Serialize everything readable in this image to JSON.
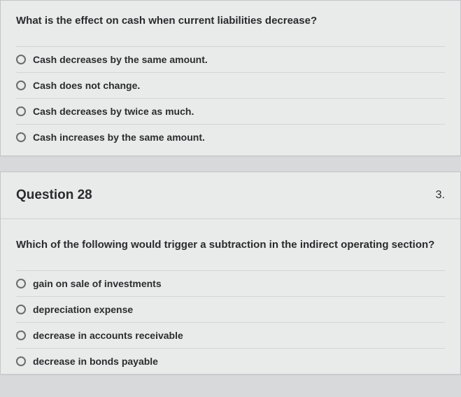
{
  "q27": {
    "prompt": "What is the effect on cash when current liabilities decrease?",
    "options": [
      "Cash decreases by the same amount.",
      "Cash does not change.",
      "Cash decreases by twice as much.",
      "Cash increases by the same amount."
    ]
  },
  "q28": {
    "title": "Question 28",
    "points": "3.",
    "prompt": "Which of the following would trigger a subtraction in the indirect operating section?",
    "options": [
      "gain on sale of investments",
      "depreciation expense",
      "decrease in accounts receivable",
      "decrease in bonds payable"
    ]
  },
  "colors": {
    "page_bg": "#d8d9da",
    "card_bg": "#e9eaea",
    "border": "#c4c5c6",
    "divider": "#d3d4d5",
    "text": "#2a2b2c",
    "radio_border": "#6b6c6d"
  }
}
